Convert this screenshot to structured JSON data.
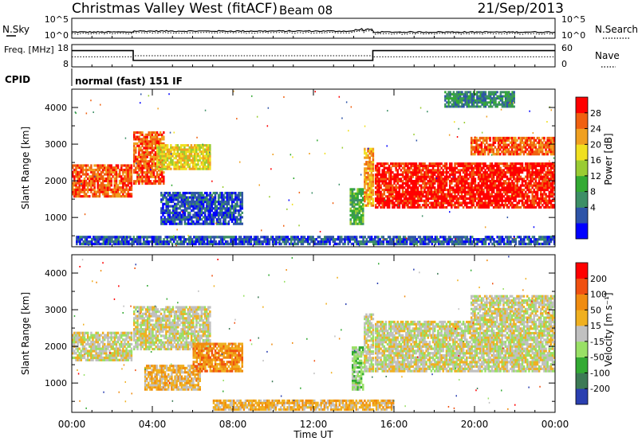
{
  "header": {
    "radar": "Christmas Valley West (fitACF)",
    "beam": "Beam 08",
    "date": "21/Sep/2013"
  },
  "chart_data": [
    {
      "type": "line",
      "panel": "noise",
      "left_label": "N.Sky",
      "right_label": "N.Search",
      "left_ticks": [
        "10^5",
        "10^0"
      ],
      "right_ticks": [
        "10^5",
        "10^0"
      ],
      "line_style_legend": "dotted"
    },
    {
      "type": "line",
      "panel": "frequency-nave",
      "left_label": "Freq. [MHz]",
      "right_label": "Nave",
      "left_ticks": [
        "18",
        "8"
      ],
      "right_ticks": [
        "60",
        "0"
      ],
      "ylim_left": [
        8,
        18
      ],
      "ylim_right": [
        0,
        60
      ],
      "series": [
        {
          "name": "Freq.",
          "style": "solid",
          "x_hours": [
            0,
            3.05,
            3.05,
            14.95,
            14.95,
            24
          ],
          "values": [
            15.3,
            15.3,
            10.9,
            10.9,
            15.3,
            15.3
          ]
        },
        {
          "name": "Nave",
          "style": "dotted",
          "x_hours": [
            0,
            3.05,
            3.05,
            14.95,
            14.95,
            24
          ],
          "values": [
            27,
            27,
            30,
            30,
            27,
            27
          ]
        }
      ]
    },
    {
      "type": "text",
      "panel": "cpid",
      "label": "CPID",
      "value": "normal (fast) 151 IF"
    },
    {
      "type": "heatmap",
      "panel": "power",
      "ylabel": "Slant Range [km]",
      "yticks": [
        1000,
        2000,
        3000,
        4000
      ],
      "ylim": [
        200,
        4500
      ],
      "xlim_hours": [
        0,
        24
      ],
      "colorbar_label": "Power [dB]",
      "colorbar_ticks": [
        "28",
        "24",
        "20",
        "16",
        "12",
        "8",
        "4"
      ],
      "colors": [
        "#0000ff",
        "#2e54a8",
        "#3d8f66",
        "#33aa33",
        "#9acc33",
        "#f0e020",
        "#f0a020",
        "#f06010",
        "#ff0000"
      ],
      "regions": [
        {
          "t0": 0.0,
          "t1": 3.0,
          "r0": 1550,
          "r1": 2450,
          "level": 7
        },
        {
          "t0": 3.05,
          "t1": 4.6,
          "r0": 1900,
          "r1": 3350,
          "level": 7
        },
        {
          "t0": 4.2,
          "t1": 6.9,
          "r0": 2300,
          "r1": 3000,
          "level": 5
        },
        {
          "t0": 4.4,
          "t1": 8.5,
          "r0": 800,
          "r1": 1700,
          "level": 1
        },
        {
          "t0": 13.8,
          "t1": 14.5,
          "r0": 800,
          "r1": 1800,
          "level": 3
        },
        {
          "t0": 14.5,
          "t1": 15.0,
          "r0": 1300,
          "r1": 2900,
          "level": 6
        },
        {
          "t0": 15.05,
          "t1": 24.0,
          "r0": 1250,
          "r1": 2500,
          "level": 8
        },
        {
          "t0": 19.8,
          "t1": 24.0,
          "r0": 2700,
          "r1": 3200,
          "level": 7
        },
        {
          "t0": 18.5,
          "t1": 22.0,
          "r0": 4000,
          "r1": 4450,
          "level": 2
        },
        {
          "t0": 0.2,
          "t1": 24.0,
          "r0": 250,
          "r1": 500,
          "level": 1
        }
      ]
    },
    {
      "type": "heatmap",
      "panel": "velocity",
      "ylabel": "Slant Range [km]",
      "yticks": [
        1000,
        2000,
        3000,
        4000
      ],
      "ylim": [
        200,
        4500
      ],
      "xlim_hours": [
        0,
        24
      ],
      "colorbar_label": "Velocity [m s⁻¹]",
      "colorbar_ticks": [
        "200",
        "100",
        "50",
        "15",
        "-15",
        "-50",
        "-100",
        "-200"
      ],
      "colors": [
        "#2a3fb0",
        "#3d7a55",
        "#33aa33",
        "#99e066",
        "#c0c0c0",
        "#f0b020",
        "#f08c10",
        "#f05010",
        "#ff0000"
      ],
      "regions": [
        {
          "t0": 0.0,
          "t1": 3.0,
          "r0": 1600,
          "r1": 2400,
          "level": 4
        },
        {
          "t0": 3.05,
          "t1": 6.9,
          "r0": 1900,
          "r1": 3100,
          "level": 4
        },
        {
          "t0": 3.6,
          "t1": 6.4,
          "r0": 800,
          "r1": 1500,
          "level": 5
        },
        {
          "t0": 6.0,
          "t1": 8.5,
          "r0": 1300,
          "r1": 2100,
          "level": 6
        },
        {
          "t0": 13.9,
          "t1": 14.5,
          "r0": 800,
          "r1": 2000,
          "level": 3
        },
        {
          "t0": 14.5,
          "t1": 15.0,
          "r0": 1300,
          "r1": 2900,
          "level": 4
        },
        {
          "t0": 15.05,
          "t1": 24.0,
          "r0": 1300,
          "r1": 2700,
          "level": 4
        },
        {
          "t0": 19.8,
          "t1": 24.0,
          "r0": 2700,
          "r1": 3400,
          "level": 4
        },
        {
          "t0": 7.0,
          "t1": 16.0,
          "r0": 250,
          "r1": 550,
          "level": 5
        }
      ]
    }
  ],
  "xaxis": {
    "label": "Time UT",
    "ticks": [
      "00:00",
      "04:00",
      "08:00",
      "12:00",
      "16:00",
      "20:00",
      "00:00"
    ],
    "range_hours": [
      0,
      24
    ]
  }
}
